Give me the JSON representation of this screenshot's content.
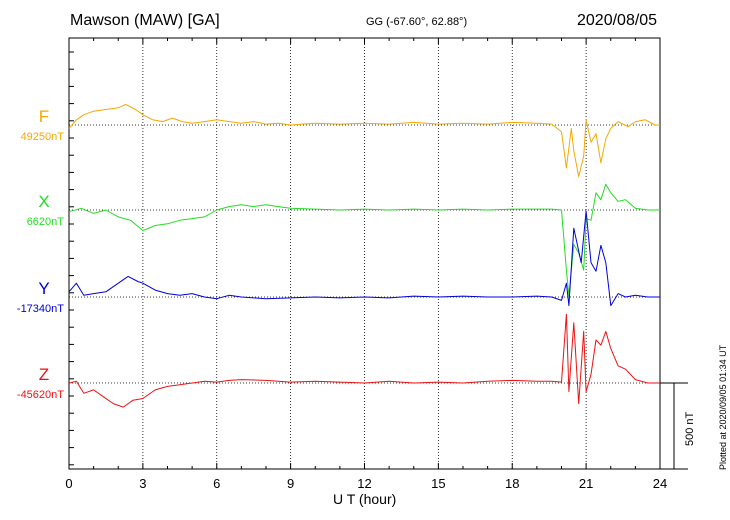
{
  "header": {
    "station": "Mawson (MAW)  [GA]",
    "coords": "GG (-67.60°,  62.88°)",
    "date": "2020/08/05"
  },
  "footer": {
    "plotted": "Plotted at 2020/09/05 01:34 UT",
    "scale_label": "500 nT"
  },
  "chart_data": {
    "type": "line",
    "xlabel": "U T (hour)",
    "xlim": [
      0,
      24
    ],
    "xticks": [
      "0",
      "3",
      "6",
      "9",
      "12",
      "15",
      "18",
      "21",
      "24"
    ],
    "grid": "vertical dotted every 3 hours",
    "scale_bar_nT": 500,
    "series": [
      {
        "name": "F",
        "baseline_label": "49250nT",
        "color": "#f5a800",
        "x": [
          0,
          0.3,
          0.6,
          1,
          1.5,
          2,
          2.3,
          2.7,
          3,
          3.4,
          3.8,
          4.2,
          4.6,
          5,
          5.5,
          6,
          6.5,
          7,
          7.5,
          8,
          8.5,
          9,
          10,
          11,
          12,
          13,
          14,
          15,
          16,
          17,
          18,
          19,
          19.6,
          20,
          20.2,
          20.4,
          20.5,
          20.7,
          20.9,
          21,
          21.2,
          21.4,
          21.6,
          21.8,
          22,
          22.3,
          22.7,
          23,
          23.4,
          23.8,
          24
        ],
        "y": [
          -20,
          30,
          60,
          80,
          90,
          100,
          120,
          90,
          60,
          30,
          20,
          40,
          20,
          10,
          20,
          30,
          20,
          10,
          20,
          5,
          10,
          0,
          10,
          5,
          10,
          5,
          15,
          5,
          10,
          5,
          15,
          10,
          5,
          -40,
          -250,
          -20,
          -150,
          -300,
          -180,
          30,
          -100,
          -50,
          -220,
          -80,
          -20,
          20,
          -10,
          20,
          30,
          0,
          0
        ]
      },
      {
        "name": "X",
        "baseline_label": "6620nT",
        "color": "#22dd22",
        "x": [
          0,
          0.5,
          1,
          1.5,
          2,
          2.5,
          3,
          3.5,
          4,
          4.5,
          5,
          5.5,
          6,
          6.5,
          7,
          7.5,
          8,
          8.5,
          9,
          10,
          11,
          12,
          13,
          14,
          15,
          16,
          17,
          18,
          19,
          19.6,
          20,
          20.2,
          20.3,
          20.5,
          20.7,
          20.9,
          21,
          21.2,
          21.4,
          21.6,
          21.8,
          22,
          22.3,
          22.6,
          23,
          23.5,
          24
        ],
        "y": [
          -10,
          10,
          -20,
          0,
          -40,
          -60,
          -120,
          -90,
          -80,
          -60,
          -50,
          -40,
          0,
          20,
          30,
          20,
          30,
          20,
          10,
          5,
          0,
          5,
          0,
          5,
          0,
          5,
          0,
          5,
          5,
          5,
          0,
          -350,
          -500,
          -200,
          -250,
          -350,
          -50,
          -60,
          100,
          60,
          150,
          100,
          50,
          60,
          10,
          0,
          0
        ]
      },
      {
        "name": "Y",
        "baseline_label": "-17340nT",
        "color": "#0000dd",
        "x": [
          0,
          0.3,
          0.6,
          1,
          1.5,
          2,
          2.4,
          2.8,
          3,
          3.5,
          4,
          4.5,
          5,
          5.5,
          6,
          6.5,
          7,
          8,
          9,
          10,
          11,
          12,
          13,
          14,
          15,
          16,
          17,
          18,
          19,
          19.6,
          20,
          20.2,
          20.3,
          20.5,
          20.8,
          21,
          21.2,
          21.4,
          21.6,
          21.8,
          22,
          22.3,
          22.6,
          23,
          23.5,
          24
        ],
        "y": [
          30,
          80,
          10,
          20,
          30,
          80,
          120,
          90,
          80,
          40,
          20,
          10,
          20,
          0,
          -10,
          10,
          0,
          -10,
          -5,
          0,
          -5,
          0,
          -5,
          5,
          0,
          5,
          0,
          0,
          5,
          0,
          -20,
          80,
          -50,
          400,
          200,
          500,
          200,
          150,
          300,
          200,
          -50,
          20,
          0,
          10,
          0,
          0
        ]
      },
      {
        "name": "Z",
        "baseline_label": "-45620nT",
        "color": "#ee1111",
        "x": [
          0,
          0.3,
          0.6,
          1,
          1.4,
          1.8,
          2.2,
          2.6,
          3,
          3.5,
          4,
          4.5,
          5,
          5.5,
          6,
          6.5,
          7,
          8,
          9,
          10,
          11,
          12,
          13,
          14,
          15,
          16,
          17,
          18,
          19,
          19.6,
          20,
          20.2,
          20.3,
          20.5,
          20.7,
          20.9,
          21,
          21.2,
          21.4,
          21.6,
          21.8,
          22,
          22.3,
          22.6,
          23,
          23.5,
          24
        ],
        "y": [
          0,
          10,
          -60,
          -40,
          -80,
          -120,
          -140,
          -100,
          -90,
          -40,
          -20,
          -10,
          0,
          10,
          5,
          15,
          20,
          15,
          5,
          10,
          5,
          0,
          10,
          0,
          5,
          0,
          10,
          15,
          10,
          10,
          5,
          400,
          -50,
          350,
          -120,
          300,
          -50,
          50,
          250,
          220,
          300,
          200,
          100,
          80,
          20,
          0,
          0
        ]
      }
    ]
  }
}
